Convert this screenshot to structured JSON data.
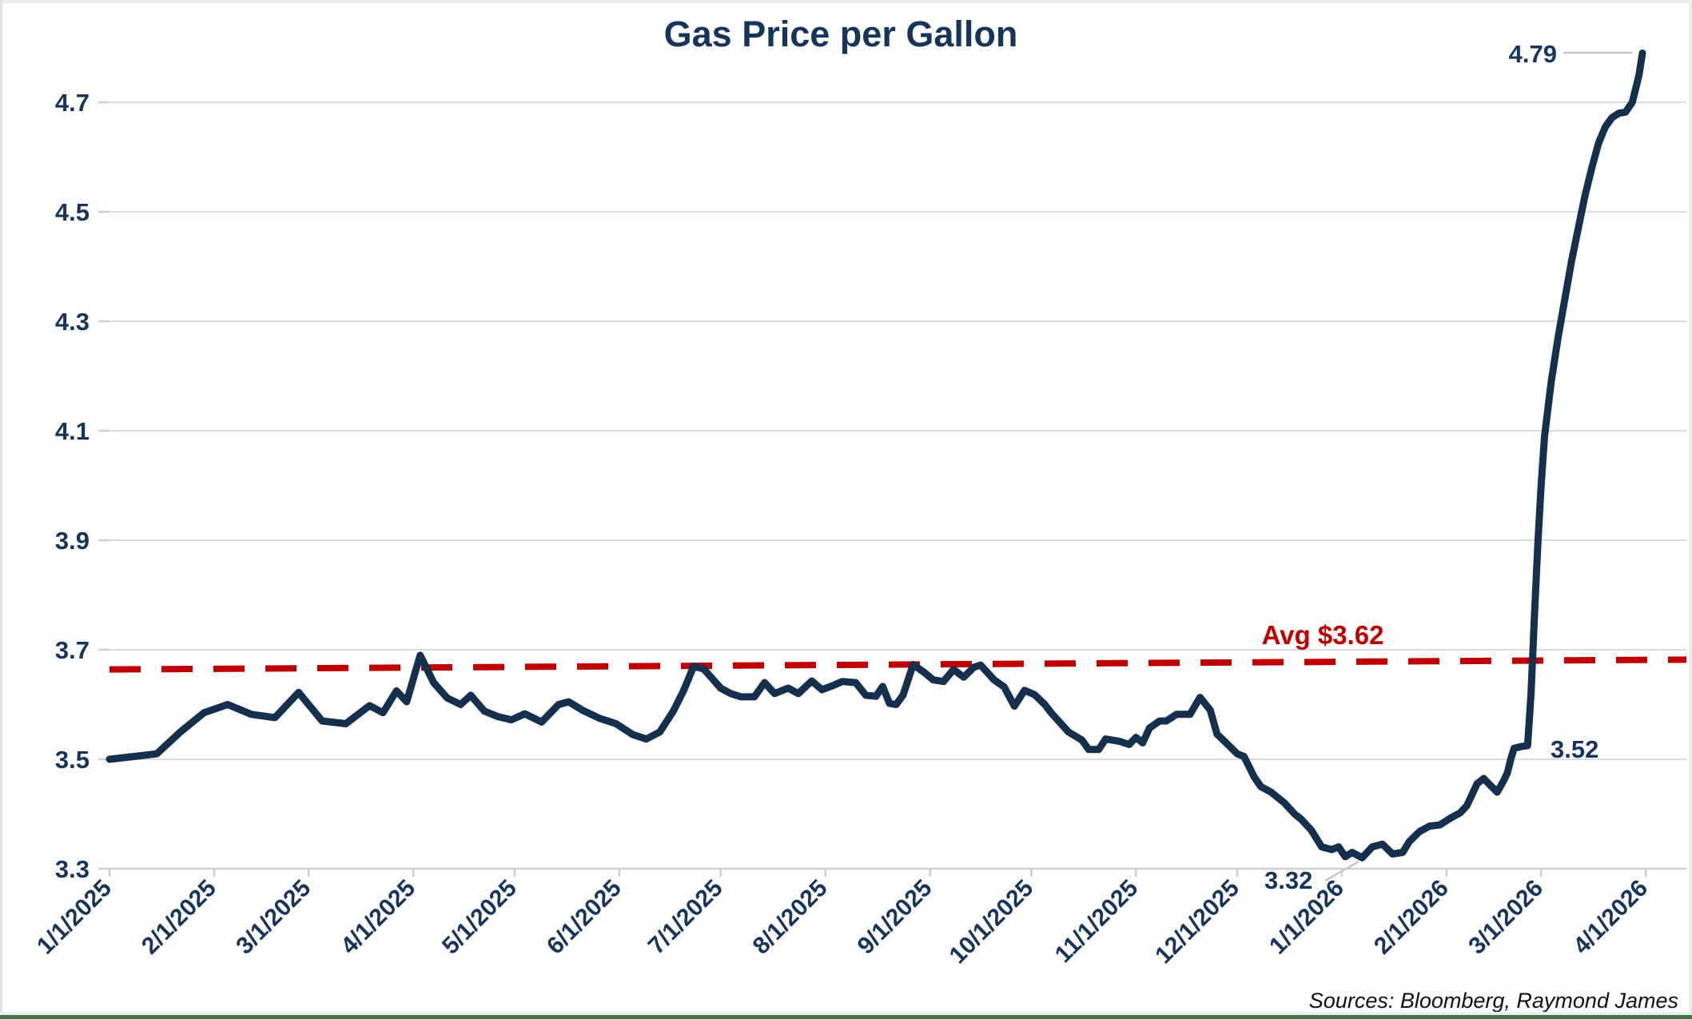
{
  "chart_data": {
    "type": "line",
    "title": "Gas Price per Gallon",
    "source": "Sources: Bloomberg, Raymond James",
    "ylim": [
      3.3,
      4.7
    ],
    "grid": true,
    "legend": "none",
    "y_ticks": [
      4.7,
      4.5,
      4.3,
      4.1,
      3.9,
      3.7,
      3.5,
      3.3
    ],
    "x_ticks": [
      {
        "label": "1/1/2025",
        "date": "2025-01-01"
      },
      {
        "label": "2/1/2025",
        "date": "2025-02-01"
      },
      {
        "label": "3/1/2025",
        "date": "2025-03-01"
      },
      {
        "label": "4/1/2025",
        "date": "2025-04-01"
      },
      {
        "label": "5/1/2025",
        "date": "2025-05-01"
      },
      {
        "label": "6/1/2025",
        "date": "2025-06-01"
      },
      {
        "label": "7/1/2025",
        "date": "2025-07-01"
      },
      {
        "label": "8/1/2025",
        "date": "2025-08-01"
      },
      {
        "label": "9/1/2025",
        "date": "2025-09-01"
      },
      {
        "label": "10/1/2025",
        "date": "2025-10-01"
      },
      {
        "label": "11/1/2025",
        "date": "2025-11-01"
      },
      {
        "label": "12/1/2025",
        "date": "2025-12-01"
      },
      {
        "label": "1/1/2026",
        "date": "2026-01-01"
      },
      {
        "label": "2/1/2026",
        "date": "2026-02-01"
      },
      {
        "label": "3/1/2026",
        "date": "2026-03-01"
      },
      {
        "label": "4/1/2026",
        "date": "2026-04-01"
      }
    ],
    "avg_line": {
      "label": "Avg $3.62",
      "value": 3.62,
      "start_value": 3.664,
      "end_value": 3.682,
      "style": "dashed"
    },
    "annotations": {
      "end": {
        "label": "4.79",
        "date": "2026-03-31",
        "value": 4.79
      },
      "pre_spike": {
        "label": "3.52",
        "date": "2026-02-25",
        "value": 3.52
      },
      "min": {
        "label": "3.32",
        "date": "2026-01-07",
        "value": 3.32
      }
    },
    "series": [
      {
        "name": "Gas Price per Gallon",
        "points": [
          [
            "2025-01-01",
            3.5
          ],
          [
            "2025-01-08",
            3.505
          ],
          [
            "2025-01-15",
            3.51
          ],
          [
            "2025-01-22",
            3.55
          ],
          [
            "2025-01-29",
            3.585
          ],
          [
            "2025-02-05",
            3.6
          ],
          [
            "2025-02-12",
            3.582
          ],
          [
            "2025-02-19",
            3.576
          ],
          [
            "2025-02-26",
            3.622
          ],
          [
            "2025-03-05",
            3.57
          ],
          [
            "2025-03-12",
            3.565
          ],
          [
            "2025-03-19",
            3.598
          ],
          [
            "2025-03-23",
            3.585
          ],
          [
            "2025-03-27",
            3.625
          ],
          [
            "2025-03-30",
            3.605
          ],
          [
            "2025-04-03",
            3.69
          ],
          [
            "2025-04-07",
            3.64
          ],
          [
            "2025-04-11",
            3.612
          ],
          [
            "2025-04-15",
            3.6
          ],
          [
            "2025-04-18",
            3.617
          ],
          [
            "2025-04-22",
            3.588
          ],
          [
            "2025-04-26",
            3.578
          ],
          [
            "2025-04-30",
            3.572
          ],
          [
            "2025-05-04",
            3.583
          ],
          [
            "2025-05-09",
            3.568
          ],
          [
            "2025-05-14",
            3.6
          ],
          [
            "2025-05-17",
            3.605
          ],
          [
            "2025-05-21",
            3.59
          ],
          [
            "2025-05-26",
            3.575
          ],
          [
            "2025-05-31",
            3.565
          ],
          [
            "2025-06-05",
            3.545
          ],
          [
            "2025-06-09",
            3.537
          ],
          [
            "2025-06-13",
            3.55
          ],
          [
            "2025-06-17",
            3.588
          ],
          [
            "2025-06-20",
            3.625
          ],
          [
            "2025-06-23",
            3.67
          ],
          [
            "2025-06-26",
            3.665
          ],
          [
            "2025-07-01",
            3.63
          ],
          [
            "2025-07-04",
            3.62
          ],
          [
            "2025-07-07",
            3.614
          ],
          [
            "2025-07-11",
            3.614
          ],
          [
            "2025-07-14",
            3.64
          ],
          [
            "2025-07-17",
            3.62
          ],
          [
            "2025-07-21",
            3.63
          ],
          [
            "2025-07-24",
            3.62
          ],
          [
            "2025-07-28",
            3.643
          ],
          [
            "2025-07-31",
            3.627
          ],
          [
            "2025-08-03",
            3.634
          ],
          [
            "2025-08-06",
            3.642
          ],
          [
            "2025-08-10",
            3.64
          ],
          [
            "2025-08-13",
            3.617
          ],
          [
            "2025-08-16",
            3.615
          ],
          [
            "2025-08-18",
            3.633
          ],
          [
            "2025-08-20",
            3.602
          ],
          [
            "2025-08-22",
            3.6
          ],
          [
            "2025-08-24",
            3.617
          ],
          [
            "2025-08-27",
            3.673
          ],
          [
            "2025-08-30",
            3.66
          ],
          [
            "2025-09-02",
            3.645
          ],
          [
            "2025-09-05",
            3.642
          ],
          [
            "2025-09-08",
            3.664
          ],
          [
            "2025-09-11",
            3.65
          ],
          [
            "2025-09-14",
            3.668
          ],
          [
            "2025-09-16",
            3.672
          ],
          [
            "2025-09-20",
            3.645
          ],
          [
            "2025-09-23",
            3.632
          ],
          [
            "2025-09-26",
            3.597
          ],
          [
            "2025-09-29",
            3.626
          ],
          [
            "2025-10-02",
            3.618
          ],
          [
            "2025-10-05",
            3.6
          ],
          [
            "2025-10-07",
            3.584
          ],
          [
            "2025-10-12",
            3.55
          ],
          [
            "2025-10-16",
            3.535
          ],
          [
            "2025-10-18",
            3.518
          ],
          [
            "2025-10-21",
            3.518
          ],
          [
            "2025-10-23",
            3.537
          ],
          [
            "2025-10-27",
            3.533
          ],
          [
            "2025-10-30",
            3.527
          ],
          [
            "2025-11-01",
            3.54
          ],
          [
            "2025-11-03",
            3.53
          ],
          [
            "2025-11-05",
            3.557
          ],
          [
            "2025-11-08",
            3.57
          ],
          [
            "2025-11-10",
            3.57
          ],
          [
            "2025-11-13",
            3.582
          ],
          [
            "2025-11-17",
            3.582
          ],
          [
            "2025-11-20",
            3.613
          ],
          [
            "2025-11-23",
            3.59
          ],
          [
            "2025-11-25",
            3.546
          ],
          [
            "2025-11-29",
            3.522
          ],
          [
            "2025-12-01",
            3.51
          ],
          [
            "2025-12-03",
            3.505
          ],
          [
            "2025-12-06",
            3.468
          ],
          [
            "2025-12-08",
            3.45
          ],
          [
            "2025-12-11",
            3.44
          ],
          [
            "2025-12-15",
            3.42
          ],
          [
            "2025-12-18",
            3.4
          ],
          [
            "2025-12-20",
            3.39
          ],
          [
            "2025-12-23",
            3.37
          ],
          [
            "2025-12-26",
            3.34
          ],
          [
            "2025-12-29",
            3.335
          ],
          [
            "2025-12-31",
            3.34
          ],
          [
            "2026-01-02",
            3.322
          ],
          [
            "2026-01-04",
            3.33
          ],
          [
            "2026-01-07",
            3.32
          ],
          [
            "2026-01-10",
            3.34
          ],
          [
            "2026-01-13",
            3.345
          ],
          [
            "2026-01-16",
            3.327
          ],
          [
            "2026-01-19",
            3.33
          ],
          [
            "2026-01-21",
            3.35
          ],
          [
            "2026-01-24",
            3.368
          ],
          [
            "2026-01-27",
            3.378
          ],
          [
            "2026-01-30",
            3.38
          ],
          [
            "2026-02-02",
            3.392
          ],
          [
            "2026-02-05",
            3.402
          ],
          [
            "2026-02-07",
            3.415
          ],
          [
            "2026-02-10",
            3.455
          ],
          [
            "2026-02-12",
            3.465
          ],
          [
            "2026-02-14",
            3.452
          ],
          [
            "2026-02-16",
            3.44
          ],
          [
            "2026-02-18",
            3.462
          ],
          [
            "2026-02-19",
            3.475
          ],
          [
            "2026-02-20",
            3.5
          ],
          [
            "2026-02-21",
            3.52
          ],
          [
            "2026-02-23",
            3.523
          ],
          [
            "2026-02-25",
            3.525
          ],
          [
            "2026-02-26",
            3.62
          ],
          [
            "2026-02-27",
            3.76
          ],
          [
            "2026-02-28",
            3.89
          ],
          [
            "2026-03-01",
            4.0
          ],
          [
            "2026-03-02",
            4.09
          ],
          [
            "2026-03-04",
            4.19
          ],
          [
            "2026-03-06",
            4.27
          ],
          [
            "2026-03-08",
            4.34
          ],
          [
            "2026-03-10",
            4.41
          ],
          [
            "2026-03-12",
            4.47
          ],
          [
            "2026-03-14",
            4.53
          ],
          [
            "2026-03-16",
            4.58
          ],
          [
            "2026-03-18",
            4.625
          ],
          [
            "2026-03-20",
            4.655
          ],
          [
            "2026-03-22",
            4.672
          ],
          [
            "2026-03-24",
            4.68
          ],
          [
            "2026-03-26",
            4.682
          ],
          [
            "2026-03-28",
            4.7
          ],
          [
            "2026-03-30",
            4.75
          ],
          [
            "2026-03-31",
            4.79
          ]
        ]
      }
    ],
    "colors": {
      "line": "#15304E",
      "text": "#17355C",
      "average": "#C00000",
      "grid": "#DCDCDC",
      "axis": "#CFCFCF",
      "leader": "#C9C9C9",
      "frame_green": "#40764A",
      "frame_gray": "#ECECEC"
    }
  }
}
